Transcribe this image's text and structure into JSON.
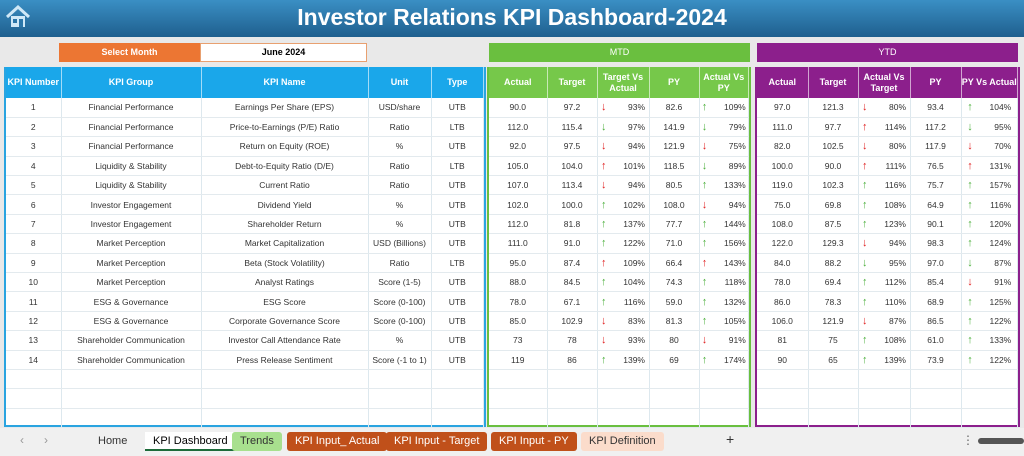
{
  "title": "Investor Relations KPI Dashboard-2024",
  "select_month": {
    "label": "Select Month",
    "value": "June 2024"
  },
  "sections": {
    "mtd": "MTD",
    "ytd": "YTD"
  },
  "headers": {
    "main": [
      "KPI Number",
      "KPI Group",
      "KPI Name",
      "Unit",
      "Type"
    ],
    "mtd": [
      "Actual",
      "Target",
      "Target Vs Actual",
      "PY",
      "Actual Vs PY"
    ],
    "ytd": [
      "Actual",
      "Target",
      "Actual Vs Target",
      "PY",
      "PY Vs Actual"
    ]
  },
  "colors": {
    "good": "#4caf3c",
    "bad": "#e02020",
    "mtd": "#6abf3f",
    "ytd": "#8c1f8c",
    "kpi": "#1aa7ea",
    "select": "#ec7633"
  },
  "rows": [
    {
      "n": "1",
      "group": "Financial Performance",
      "name": "Earnings Per Share (EPS)",
      "unit": "USD/share",
      "type": "UTB",
      "mtd": [
        "90.0",
        "97.2",
        [
          "down",
          "bad",
          "93%"
        ],
        "82.6",
        [
          "up",
          "good",
          "109%"
        ]
      ],
      "ytd": [
        "97.0",
        "121.3",
        [
          "down",
          "bad",
          "80%"
        ],
        "93.4",
        [
          "up",
          "good",
          "104%"
        ]
      ]
    },
    {
      "n": "2",
      "group": "Financial Performance",
      "name": "Price-to-Earnings (P/E) Ratio",
      "unit": "Ratio",
      "type": "LTB",
      "mtd": [
        "112.0",
        "115.4",
        [
          "down",
          "good",
          "97%"
        ],
        "141.9",
        [
          "down",
          "good",
          "79%"
        ]
      ],
      "ytd": [
        "111.0",
        "97.7",
        [
          "up",
          "bad",
          "114%"
        ],
        "117.2",
        [
          "down",
          "good",
          "95%"
        ]
      ]
    },
    {
      "n": "3",
      "group": "Financial Performance",
      "name": "Return on Equity (ROE)",
      "unit": "%",
      "type": "UTB",
      "mtd": [
        "92.0",
        "97.5",
        [
          "down",
          "bad",
          "94%"
        ],
        "121.9",
        [
          "down",
          "bad",
          "75%"
        ]
      ],
      "ytd": [
        "82.0",
        "102.5",
        [
          "down",
          "bad",
          "80%"
        ],
        "117.9",
        [
          "down",
          "bad",
          "70%"
        ]
      ]
    },
    {
      "n": "4",
      "group": "Liquidity & Stability",
      "name": "Debt-to-Equity Ratio (D/E)",
      "unit": "Ratio",
      "type": "LTB",
      "mtd": [
        "105.0",
        "104.0",
        [
          "up",
          "bad",
          "101%"
        ],
        "118.5",
        [
          "down",
          "good",
          "89%"
        ]
      ],
      "ytd": [
        "100.0",
        "90.0",
        [
          "up",
          "bad",
          "111%"
        ],
        "76.5",
        [
          "up",
          "bad",
          "131%"
        ]
      ]
    },
    {
      "n": "5",
      "group": "Liquidity & Stability",
      "name": "Current Ratio",
      "unit": "Ratio",
      "type": "UTB",
      "mtd": [
        "107.0",
        "113.4",
        [
          "down",
          "bad",
          "94%"
        ],
        "80.5",
        [
          "up",
          "good",
          "133%"
        ]
      ],
      "ytd": [
        "119.0",
        "102.3",
        [
          "up",
          "good",
          "116%"
        ],
        "75.7",
        [
          "up",
          "good",
          "157%"
        ]
      ]
    },
    {
      "n": "6",
      "group": "Investor Engagement",
      "name": "Dividend Yield",
      "unit": "%",
      "type": "UTB",
      "mtd": [
        "102.0",
        "100.0",
        [
          "up",
          "good",
          "102%"
        ],
        "108.0",
        [
          "down",
          "bad",
          "94%"
        ]
      ],
      "ytd": [
        "75.0",
        "69.8",
        [
          "up",
          "good",
          "108%"
        ],
        "64.9",
        [
          "up",
          "good",
          "116%"
        ]
      ]
    },
    {
      "n": "7",
      "group": "Investor Engagement",
      "name": "Shareholder Return",
      "unit": "%",
      "type": "UTB",
      "mtd": [
        "112.0",
        "81.8",
        [
          "up",
          "good",
          "137%"
        ],
        "77.7",
        [
          "up",
          "good",
          "144%"
        ]
      ],
      "ytd": [
        "108.0",
        "87.5",
        [
          "up",
          "good",
          "123%"
        ],
        "90.1",
        [
          "up",
          "good",
          "120%"
        ]
      ]
    },
    {
      "n": "8",
      "group": "Market Perception",
      "name": "Market Capitalization",
      "unit": "USD (Billions)",
      "type": "UTB",
      "mtd": [
        "111.0",
        "91.0",
        [
          "up",
          "good",
          "122%"
        ],
        "71.0",
        [
          "up",
          "good",
          "156%"
        ]
      ],
      "ytd": [
        "122.0",
        "129.3",
        [
          "down",
          "bad",
          "94%"
        ],
        "98.3",
        [
          "up",
          "good",
          "124%"
        ]
      ]
    },
    {
      "n": "9",
      "group": "Market Perception",
      "name": "Beta (Stock Volatility)",
      "unit": "Ratio",
      "type": "LTB",
      "mtd": [
        "95.0",
        "87.4",
        [
          "up",
          "bad",
          "109%"
        ],
        "66.4",
        [
          "up",
          "bad",
          "143%"
        ]
      ],
      "ytd": [
        "84.0",
        "88.2",
        [
          "down",
          "good",
          "95%"
        ],
        "97.0",
        [
          "down",
          "good",
          "87%"
        ]
      ]
    },
    {
      "n": "10",
      "group": "Market Perception",
      "name": "Analyst Ratings",
      "unit": "Score (1-5)",
      "type": "UTB",
      "mtd": [
        "88.0",
        "84.5",
        [
          "up",
          "good",
          "104%"
        ],
        "74.3",
        [
          "up",
          "good",
          "118%"
        ]
      ],
      "ytd": [
        "78.0",
        "69.4",
        [
          "up",
          "good",
          "112%"
        ],
        "85.4",
        [
          "down",
          "bad",
          "91%"
        ]
      ]
    },
    {
      "n": "11",
      "group": "ESG & Governance",
      "name": "ESG Score",
      "unit": "Score (0-100)",
      "type": "UTB",
      "mtd": [
        "78.0",
        "67.1",
        [
          "up",
          "good",
          "116%"
        ],
        "59.0",
        [
          "up",
          "good",
          "132%"
        ]
      ],
      "ytd": [
        "86.0",
        "78.3",
        [
          "up",
          "good",
          "110%"
        ],
        "68.9",
        [
          "up",
          "good",
          "125%"
        ]
      ]
    },
    {
      "n": "12",
      "group": "ESG & Governance",
      "name": "Corporate Governance Score",
      "unit": "Score (0-100)",
      "type": "UTB",
      "mtd": [
        "85.0",
        "102.9",
        [
          "down",
          "bad",
          "83%"
        ],
        "81.3",
        [
          "up",
          "good",
          "105%"
        ]
      ],
      "ytd": [
        "106.0",
        "121.9",
        [
          "down",
          "bad",
          "87%"
        ],
        "86.5",
        [
          "up",
          "good",
          "122%"
        ]
      ]
    },
    {
      "n": "13",
      "group": "Shareholder Communication",
      "name": "Investor Call Attendance Rate",
      "unit": "%",
      "type": "UTB",
      "mtd": [
        "73",
        "78",
        [
          "down",
          "bad",
          "93%"
        ],
        "80",
        [
          "down",
          "bad",
          "91%"
        ]
      ],
      "ytd": [
        "81",
        "75",
        [
          "up",
          "good",
          "108%"
        ],
        "61.0",
        [
          "up",
          "good",
          "133%"
        ]
      ]
    },
    {
      "n": "14",
      "group": "Shareholder Communication",
      "name": "Press Release Sentiment",
      "unit": "Score (-1 to 1)",
      "type": "UTB",
      "mtd": [
        "119",
        "86",
        [
          "up",
          "good",
          "139%"
        ],
        "69",
        [
          "up",
          "good",
          "174%"
        ]
      ],
      "ytd": [
        "90",
        "65",
        [
          "up",
          "good",
          "139%"
        ],
        "73.9",
        [
          "up",
          "good",
          "122%"
        ]
      ]
    }
  ],
  "sheet_tabs": [
    {
      "label": "Home",
      "bg": "transparent",
      "fg": "#333"
    },
    {
      "label": "KPI Dashboard",
      "bg": "#ffffff",
      "fg": "#000",
      "active": true
    },
    {
      "label": "Trends",
      "bg": "#a8e08e",
      "fg": "#333"
    },
    {
      "label": "KPI Input_ Actual",
      "bg": "#c0501a",
      "fg": "#fff"
    },
    {
      "label": "KPI Input - Target",
      "bg": "#c0501a",
      "fg": "#fff"
    },
    {
      "label": "KPI Input - PY",
      "bg": "#c0501a",
      "fg": "#fff"
    },
    {
      "label": "KPI Definition",
      "bg": "#fbdccb",
      "fg": "#333"
    }
  ],
  "add_sheet": "+"
}
